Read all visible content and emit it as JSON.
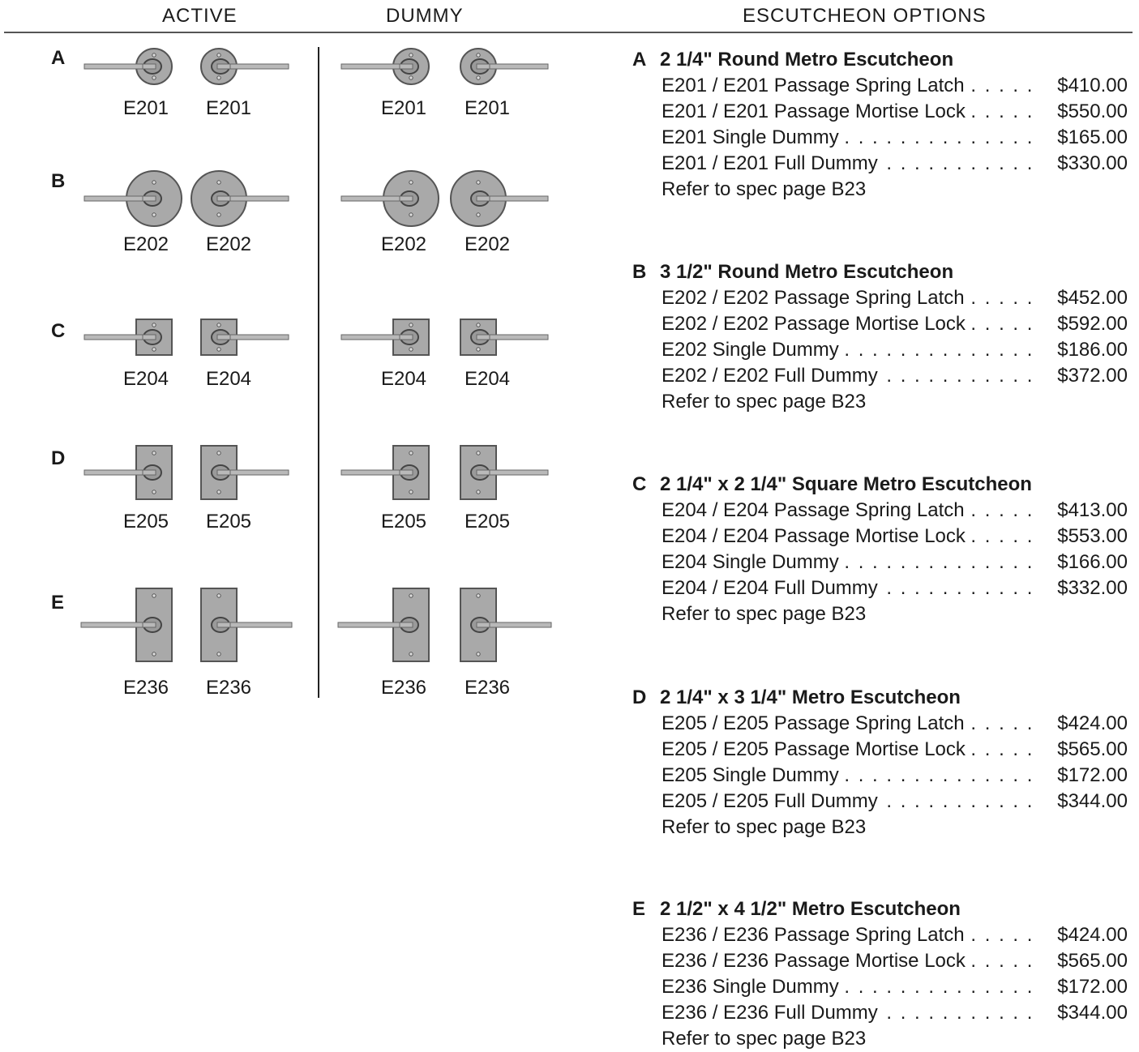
{
  "headers": {
    "active": "ACTIVE",
    "dummy": "DUMMY",
    "options": "ESCUTCHEON OPTIONS"
  },
  "rows": [
    {
      "letter": "A",
      "codes": [
        "E201",
        "E201",
        "E201",
        "E201"
      ]
    },
    {
      "letter": "B",
      "codes": [
        "E202",
        "E202",
        "E202",
        "E202"
      ]
    },
    {
      "letter": "C",
      "codes": [
        "E204",
        "E204",
        "E204",
        "E204"
      ]
    },
    {
      "letter": "D",
      "codes": [
        "E205",
        "E205",
        "E205",
        "E205"
      ]
    },
    {
      "letter": "E",
      "codes": [
        "E236",
        "E236",
        "E236",
        "E236"
      ]
    }
  ],
  "sections": [
    {
      "letter": "A",
      "title": "2 1/4\" Round Metro Escutcheon",
      "items": [
        {
          "label": "E201 / E201 Passage Spring Latch",
          "price": "$410.00"
        },
        {
          "label": "E201 / E201 Passage Mortise Lock",
          "price": "$550.00"
        },
        {
          "label": "E201 Single Dummy",
          "price": "$165.00"
        },
        {
          "label": "E201 / E201 Full Dummy",
          "price": "$330.00"
        }
      ],
      "ref": "Refer to spec page B23"
    },
    {
      "letter": "B",
      "title": "3 1/2\" Round Metro Escutcheon",
      "items": [
        {
          "label": "E202 / E202 Passage Spring Latch",
          "price": "$452.00"
        },
        {
          "label": "E202 / E202 Passage Mortise Lock",
          "price": "$592.00"
        },
        {
          "label": "E202 Single Dummy",
          "price": "$186.00"
        },
        {
          "label": "E202 / E202 Full Dummy",
          "price": "$372.00"
        }
      ],
      "ref": "Refer to spec page B23"
    },
    {
      "letter": "C",
      "title": "2 1/4\" x 2 1/4\" Square Metro Escutcheon",
      "items": [
        {
          "label": "E204 / E204 Passage Spring Latch",
          "price": "$413.00"
        },
        {
          "label": "E204 / E204 Passage Mortise Lock",
          "price": "$553.00"
        },
        {
          "label": "E204 Single Dummy",
          "price": "$166.00"
        },
        {
          "label": "E204 / E204 Full Dummy",
          "price": "$332.00"
        }
      ],
      "ref": "Refer to spec page B23"
    },
    {
      "letter": "D",
      "title": "2 1/4\" x 3 1/4\" Metro Escutcheon",
      "items": [
        {
          "label": "E205 / E205 Passage Spring Latch",
          "price": "$424.00"
        },
        {
          "label": "E205 / E205 Passage Mortise Lock",
          "price": "$565.00"
        },
        {
          "label": "E205 Single Dummy",
          "price": "$172.00"
        },
        {
          "label": "E205 / E205 Full Dummy",
          "price": "$344.00"
        }
      ],
      "ref": "Refer to spec page B23"
    },
    {
      "letter": "E",
      "title": "2 1/2\"  x 4 1/2\" Metro Escutcheon",
      "items": [
        {
          "label": "E236 / E236 Passage Spring Latch",
          "price": "$424.00"
        },
        {
          "label": "E236 / E236 Passage Mortise Lock",
          "price": "$565.00"
        },
        {
          "label": "E236 Single Dummy",
          "price": "$172.00"
        },
        {
          "label": "E236 / E236 Full Dummy",
          "price": "$344.00"
        }
      ],
      "ref": "Refer to spec page B23"
    }
  ]
}
